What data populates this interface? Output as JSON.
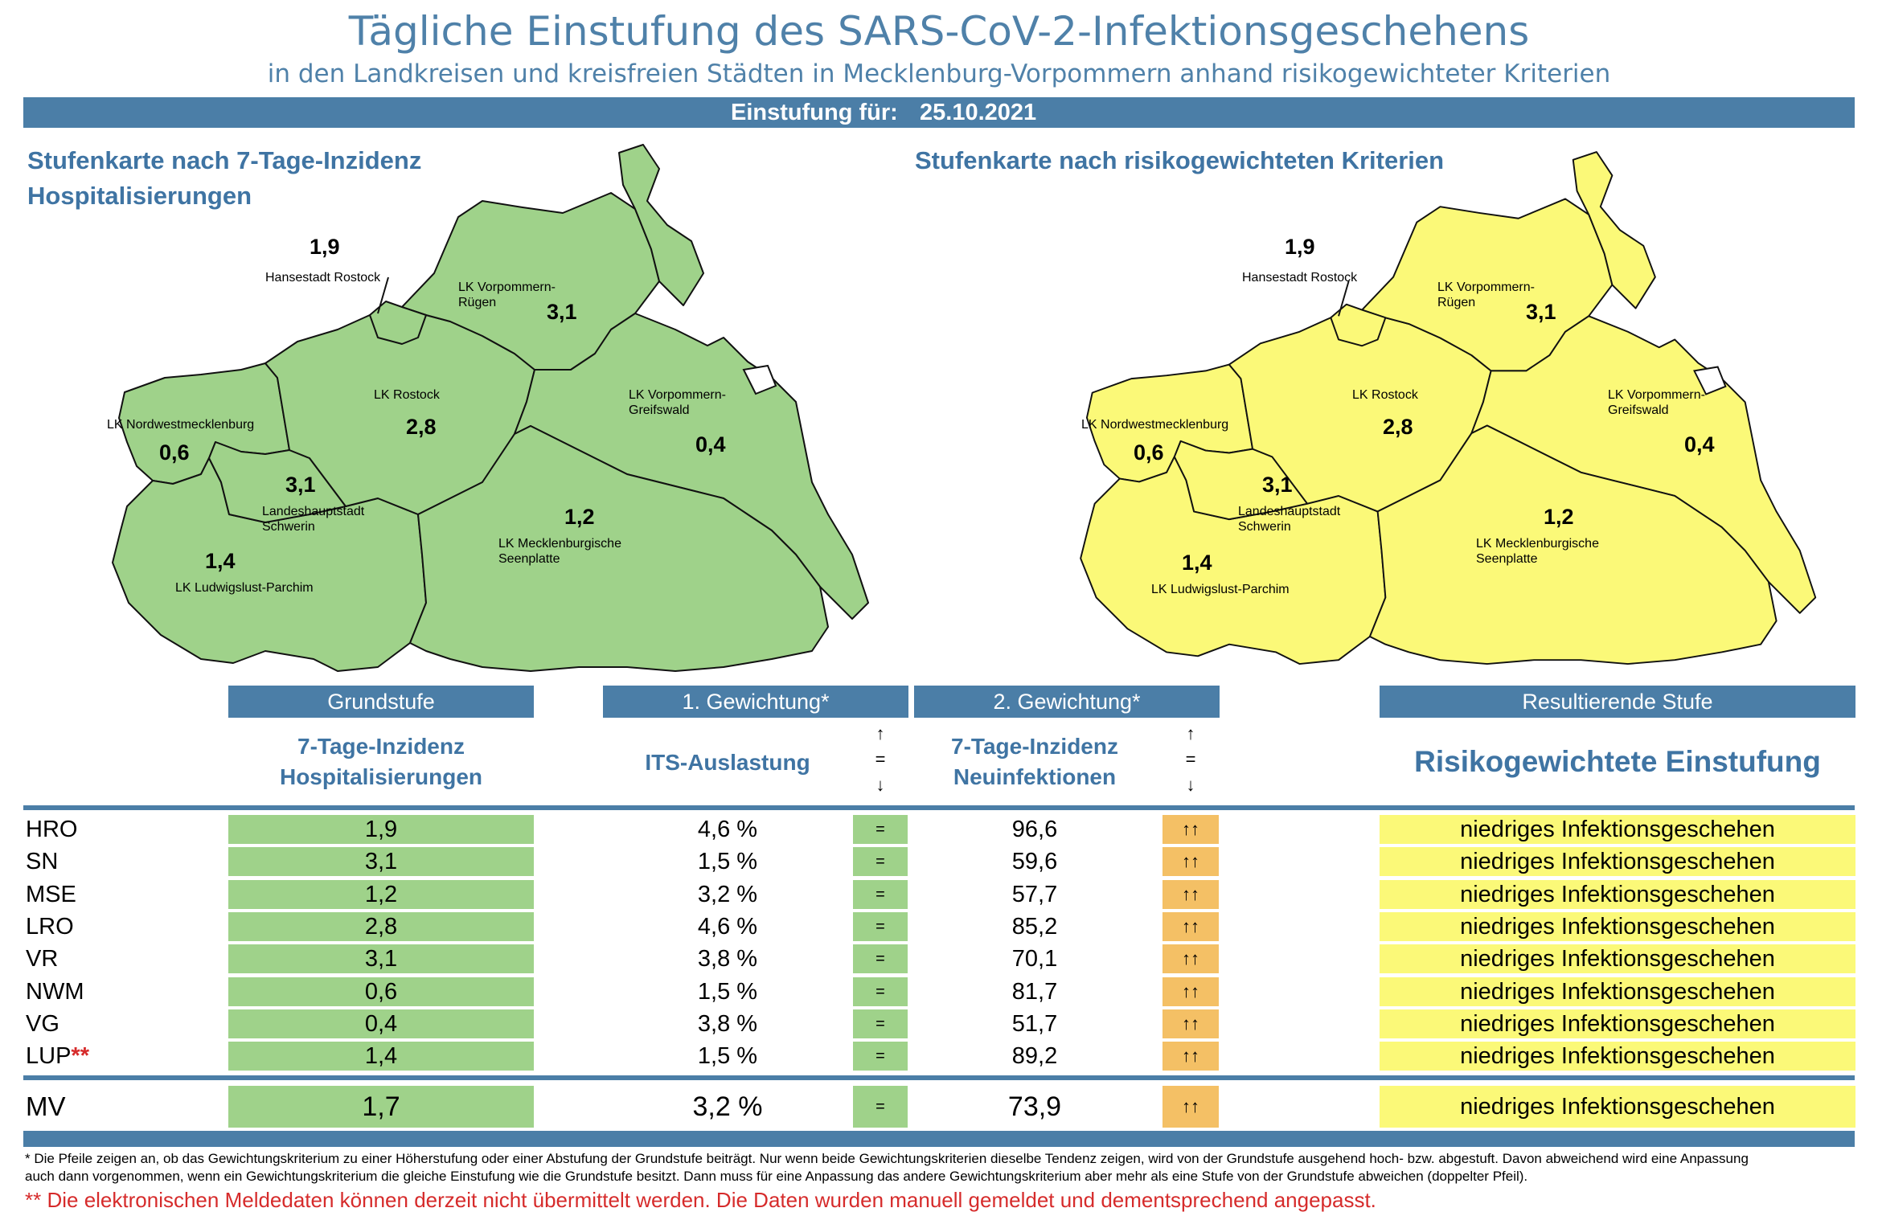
{
  "header": {
    "title": "Tägliche Einstufung des SARS-CoV-2-Infektionsgeschehens",
    "subtitle": "in den Landkreisen und kreisfreien Städten in Mecklenburg-Vorpommern anhand risikogewichteter Kriterien",
    "date_label": "Einstufung für:",
    "date_value": "25.10.2021"
  },
  "maps": {
    "left_title_1": "Stufenkarte nach 7-Tage-Inzidenz",
    "left_title_2": "Hospitalisierungen",
    "right_title": "Stufenkarte nach risikogewichteten Kriterien",
    "fill_left": "#9fd28a",
    "fill_right": "#fbf978",
    "labels": {
      "hro_name": "Hansestadt Rostock",
      "hro_val": "1,9",
      "vr_name_1": "LK Vorpommern-",
      "vr_name_2": "Rügen",
      "vr_val": "3,1",
      "lro_name": "LK Rostock",
      "lro_val": "2,8",
      "vg_name_1": "LK Vorpommern-",
      "vg_name_2": "Greifswald",
      "vg_val": "0,4",
      "nwm_name": "LK Nordwestmecklenburg",
      "nwm_val": "0,6",
      "sn_name_1": "Landeshauptstadt",
      "sn_name_2": "Schwerin",
      "sn_val": "3,1",
      "mse_name_1": "LK Mecklenburgische",
      "mse_name_2": "Seenplatte",
      "mse_val": "1,2",
      "lup_name": "LK Ludwigslust-Parchim",
      "lup_val": "1,4"
    }
  },
  "table": {
    "headers": [
      "Grundstufe",
      "1. Gewichtung*",
      "2. Gewichtung*",
      "Resultierende Stufe"
    ],
    "sub_grund_1": "7-Tage-Inzidenz",
    "sub_grund_2": "Hospitalisierungen",
    "sub_its": "ITS-Auslastung",
    "sub_neu_1": "7-Tage-Inzidenz",
    "sub_neu_2": "Neuinfektionen",
    "sub_result": "Risikogewichtete Einstufung",
    "legend_up": "↑",
    "legend_eq": "=",
    "legend_down": "↓",
    "rows": [
      {
        "label": "HRO",
        "mark": "",
        "hosp": "1,9",
        "its": "4,6 %",
        "its_trend": "=",
        "inz": "96,6",
        "inz_trend": "↑↑",
        "result": "niedriges Infektionsgeschehen"
      },
      {
        "label": "SN",
        "mark": "",
        "hosp": "3,1",
        "its": "1,5 %",
        "its_trend": "=",
        "inz": "59,6",
        "inz_trend": "↑↑",
        "result": "niedriges Infektionsgeschehen"
      },
      {
        "label": "MSE",
        "mark": "",
        "hosp": "1,2",
        "its": "3,2 %",
        "its_trend": "=",
        "inz": "57,7",
        "inz_trend": "↑↑",
        "result": "niedriges Infektionsgeschehen"
      },
      {
        "label": "LRO",
        "mark": "",
        "hosp": "2,8",
        "its": "4,6 %",
        "its_trend": "=",
        "inz": "85,2",
        "inz_trend": "↑↑",
        "result": "niedriges Infektionsgeschehen"
      },
      {
        "label": "VR",
        "mark": "",
        "hosp": "3,1",
        "its": "3,8 %",
        "its_trend": "=",
        "inz": "70,1",
        "inz_trend": "↑↑",
        "result": "niedriges Infektionsgeschehen"
      },
      {
        "label": "NWM",
        "mark": "",
        "hosp": "0,6",
        "its": "1,5 %",
        "its_trend": "=",
        "inz": "81,7",
        "inz_trend": "↑↑",
        "result": "niedriges Infektionsgeschehen"
      },
      {
        "label": "VG",
        "mark": "",
        "hosp": "0,4",
        "its": "3,8 %",
        "its_trend": "=",
        "inz": "51,7",
        "inz_trend": "↑↑",
        "result": "niedriges Infektionsgeschehen"
      },
      {
        "label": "LUP",
        "mark": "**",
        "hosp": "1,4",
        "its": "1,5 %",
        "its_trend": "=",
        "inz": "89,2",
        "inz_trend": "↑↑",
        "result": "niedriges Infektionsgeschehen"
      }
    ],
    "total": {
      "label": "MV",
      "hosp": "1,7",
      "its": "3,2 %",
      "its_trend": "=",
      "inz": "73,9",
      "inz_trend": "↑↑",
      "result": "niedriges Infektionsgeschehen"
    }
  },
  "footer": {
    "note_1": "* Die Pfeile zeigen an, ob das Gewichtungskriterium zu einer Höherstufung oder einer Abstufung der Grundstufe beiträgt. Nur wenn beide Gewichtungskriterien dieselbe Tendenz zeigen, wird von der Grundstufe ausgehend hoch- bzw. abgestuft.  Davon abweichend wird eine Anpassung",
    "note_2": "auch dann vorgenommen, wenn ein Gewichtungskriterium die gleiche Einstufung wie die Grundstufe besitzt. Dann muss für eine Anpassung das andere Gewichtungskriterium aber mehr als eine Stufe von der Grundstufe abweichen (doppelter Pfeil).",
    "note_3": "** Die elektronischen Meldedaten können derzeit nicht übermittelt werden. Die Daten wurden manuell gemeldet und dementsprechend angepasst."
  },
  "colors": {
    "accent": "#4b7ea7",
    "green": "#9fd28a",
    "yellow": "#fbf978",
    "orange": "#f4c065",
    "red": "#d62b2b"
  }
}
